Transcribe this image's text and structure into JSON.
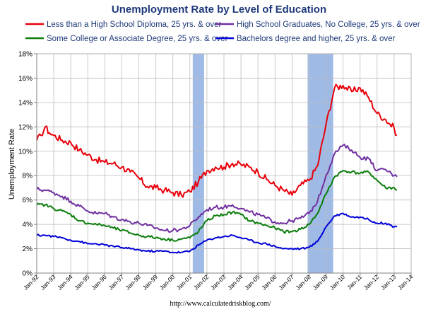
{
  "chart_data": {
    "type": "line",
    "title": "Unemployment Rate by Level of Education",
    "xlabel": "",
    "ylabel": "Unemployment Rate",
    "x_range": [
      "Jan-92",
      "Jan-14"
    ],
    "ylim": [
      0,
      18
    ],
    "y_ticks": [
      "0%",
      "2%",
      "4%",
      "6%",
      "8%",
      "10%",
      "12%",
      "14%",
      "16%",
      "18%"
    ],
    "x_ticks": [
      "Jan-92",
      "Jan-93",
      "Jan-94",
      "Jan-95",
      "Jan-96",
      "Jan-97",
      "Jan-98",
      "Jan-99",
      "Jan-00",
      "Jan-01",
      "Jan-02",
      "Jan-03",
      "Jan-04",
      "Jan-05",
      "Jan-06",
      "Jan-07",
      "Jan-08",
      "Jan-09",
      "Jan-10",
      "Jan-11",
      "Jan-12",
      "Jan-13",
      "Jan-14"
    ],
    "grid": true,
    "legend_position": "top",
    "source": "http://www.calculatedriskblog.com/",
    "recessions": [
      {
        "start": "Mar-01",
        "end": "Nov-01"
      },
      {
        "start": "Dec-07",
        "end": "Jun-09"
      }
    ],
    "series": [
      {
        "name": "Less than a High School Diploma, 25 yrs. & over",
        "color": "#e8000b",
        "points": [
          [
            "Jan-92",
            10.9
          ],
          [
            "Apr-92",
            11.3
          ],
          [
            "Jul-92",
            12.0
          ],
          [
            "Oct-92",
            11.5
          ],
          [
            "Jan-93",
            11.3
          ],
          [
            "Jul-93",
            10.9
          ],
          [
            "Jan-94",
            10.7
          ],
          [
            "Jul-94",
            10.1
          ],
          [
            "Jan-95",
            9.7
          ],
          [
            "Jul-95",
            9.3
          ],
          [
            "Jan-96",
            9.1
          ],
          [
            "Jul-96",
            9.0
          ],
          [
            "Jan-97",
            8.7
          ],
          [
            "Jul-97",
            8.3
          ],
          [
            "Jan-98",
            7.8
          ],
          [
            "Jul-98",
            7.1
          ],
          [
            "Jan-99",
            7.0
          ],
          [
            "Jul-99",
            6.8
          ],
          [
            "Jan-00",
            6.6
          ],
          [
            "Jul-00",
            6.4
          ],
          [
            "Jan-01",
            6.7
          ],
          [
            "Jul-01",
            7.5
          ],
          [
            "Jan-02",
            8.4
          ],
          [
            "Jul-02",
            8.7
          ],
          [
            "Jan-03",
            8.7
          ],
          [
            "Jul-03",
            9.0
          ],
          [
            "Jan-04",
            8.9
          ],
          [
            "Jul-04",
            8.7
          ],
          [
            "Jan-05",
            8.3
          ],
          [
            "Jul-05",
            7.7
          ],
          [
            "Jan-06",
            7.2
          ],
          [
            "Jul-06",
            6.8
          ],
          [
            "Jan-07",
            6.4
          ],
          [
            "Jul-07",
            7.2
          ],
          [
            "Jan-08",
            7.6
          ],
          [
            "Jul-08",
            8.8
          ],
          [
            "Jan-09",
            12.2
          ],
          [
            "Jul-09",
            15.2
          ],
          [
            "Jan-10",
            15.4
          ],
          [
            "Jul-10",
            14.9
          ],
          [
            "Jan-11",
            15.2
          ],
          [
            "Jul-11",
            14.4
          ],
          [
            "Jan-12",
            13.1
          ],
          [
            "Jul-12",
            12.6
          ],
          [
            "Jan-13",
            11.9
          ],
          [
            "Mar-13",
            11.3
          ]
        ]
      },
      {
        "name": "High School Graduates, No College, 25 yrs. & over",
        "color": "#7030a0",
        "points": [
          [
            "Jan-92",
            6.9
          ],
          [
            "Jul-92",
            6.8
          ],
          [
            "Jan-93",
            6.6
          ],
          [
            "Jul-93",
            6.3
          ],
          [
            "Jan-94",
            5.9
          ],
          [
            "Jul-94",
            5.5
          ],
          [
            "Jan-95",
            5.1
          ],
          [
            "Jul-95",
            4.9
          ],
          [
            "Jan-96",
            4.9
          ],
          [
            "Jul-96",
            4.6
          ],
          [
            "Jan-97",
            4.4
          ],
          [
            "Jul-97",
            4.2
          ],
          [
            "Jan-98",
            4.1
          ],
          [
            "Jul-98",
            3.9
          ],
          [
            "Jan-99",
            3.7
          ],
          [
            "Jul-99",
            3.5
          ],
          [
            "Jan-00",
            3.5
          ],
          [
            "Jul-00",
            3.6
          ],
          [
            "Jan-01",
            3.9
          ],
          [
            "Jul-01",
            4.6
          ],
          [
            "Jan-02",
            5.2
          ],
          [
            "Jul-02",
            5.4
          ],
          [
            "Jan-03",
            5.4
          ],
          [
            "Jul-03",
            5.6
          ],
          [
            "Jan-04",
            5.3
          ],
          [
            "Jul-04",
            5.0
          ],
          [
            "Jan-05",
            4.8
          ],
          [
            "Jul-05",
            4.5
          ],
          [
            "Jan-06",
            4.2
          ],
          [
            "Jul-06",
            4.1
          ],
          [
            "Jan-07",
            4.3
          ],
          [
            "Jul-07",
            4.5
          ],
          [
            "Jan-08",
            4.9
          ],
          [
            "Jul-08",
            5.9
          ],
          [
            "Jan-09",
            8.0
          ],
          [
            "Jul-09",
            9.8
          ],
          [
            "Jan-10",
            10.5
          ],
          [
            "Jul-10",
            10.1
          ],
          [
            "Jan-11",
            9.5
          ],
          [
            "Jul-11",
            9.4
          ],
          [
            "Jan-12",
            8.4
          ],
          [
            "Jul-12",
            8.5
          ],
          [
            "Jan-13",
            8.0
          ],
          [
            "Mar-13",
            7.9
          ]
        ]
      },
      {
        "name": "Some College or Associate Degree, 25 yrs. & over",
        "color": "#0a7d0a",
        "points": [
          [
            "Jan-92",
            5.6
          ],
          [
            "Jul-92",
            5.6
          ],
          [
            "Jan-93",
            5.3
          ],
          [
            "Jul-93",
            5.1
          ],
          [
            "Jan-94",
            4.8
          ],
          [
            "Jul-94",
            4.3
          ],
          [
            "Jan-95",
            4.1
          ],
          [
            "Jul-95",
            4.0
          ],
          [
            "Jan-96",
            3.9
          ],
          [
            "Jul-96",
            3.7
          ],
          [
            "Jan-97",
            3.5
          ],
          [
            "Jul-97",
            3.3
          ],
          [
            "Jan-98",
            3.1
          ],
          [
            "Jul-98",
            3.0
          ],
          [
            "Jan-99",
            2.9
          ],
          [
            "Jul-99",
            2.8
          ],
          [
            "Jan-00",
            2.7
          ],
          [
            "Jul-00",
            2.8
          ],
          [
            "Jan-01",
            2.9
          ],
          [
            "Jul-01",
            3.4
          ],
          [
            "Jan-02",
            4.3
          ],
          [
            "Jul-02",
            4.7
          ],
          [
            "Jan-03",
            4.8
          ],
          [
            "Jul-03",
            5.0
          ],
          [
            "Jan-04",
            4.8
          ],
          [
            "Jul-04",
            4.3
          ],
          [
            "Jan-05",
            4.1
          ],
          [
            "Jul-05",
            3.9
          ],
          [
            "Jan-06",
            3.7
          ],
          [
            "Jul-06",
            3.4
          ],
          [
            "Jan-07",
            3.4
          ],
          [
            "Jul-07",
            3.6
          ],
          [
            "Jan-08",
            4.0
          ],
          [
            "Jul-08",
            4.9
          ],
          [
            "Jan-09",
            6.5
          ],
          [
            "Jul-09",
            7.9
          ],
          [
            "Jan-10",
            8.4
          ],
          [
            "Jul-10",
            8.3
          ],
          [
            "Jan-11",
            8.2
          ],
          [
            "Jul-11",
            8.3
          ],
          [
            "Jan-12",
            7.6
          ],
          [
            "Jul-12",
            7.0
          ],
          [
            "Jan-13",
            7.0
          ],
          [
            "Mar-13",
            6.8
          ]
        ]
      },
      {
        "name": "Bachelors degree and higher, 25 yrs. & over",
        "color": "#0000d8",
        "points": [
          [
            "Jan-92",
            3.1
          ],
          [
            "Jul-92",
            3.1
          ],
          [
            "Jan-93",
            3.0
          ],
          [
            "Jul-93",
            2.9
          ],
          [
            "Jan-94",
            2.7
          ],
          [
            "Jul-94",
            2.6
          ],
          [
            "Jan-95",
            2.4
          ],
          [
            "Jul-95",
            2.4
          ],
          [
            "Jan-96",
            2.3
          ],
          [
            "Jul-96",
            2.2
          ],
          [
            "Jan-97",
            2.1
          ],
          [
            "Jul-97",
            2.0
          ],
          [
            "Jan-98",
            1.9
          ],
          [
            "Jul-98",
            1.8
          ],
          [
            "Jan-99",
            1.8
          ],
          [
            "Jul-99",
            1.8
          ],
          [
            "Jan-00",
            1.7
          ],
          [
            "Jul-00",
            1.7
          ],
          [
            "Jan-01",
            1.8
          ],
          [
            "Jul-01",
            2.3
          ],
          [
            "Jan-02",
            2.7
          ],
          [
            "Jul-02",
            2.9
          ],
          [
            "Jan-03",
            3.0
          ],
          [
            "Jul-03",
            3.1
          ],
          [
            "Jan-04",
            2.9
          ],
          [
            "Jul-04",
            2.7
          ],
          [
            "Jan-05",
            2.5
          ],
          [
            "Jul-05",
            2.4
          ],
          [
            "Jan-06",
            2.2
          ],
          [
            "Jul-06",
            2.0
          ],
          [
            "Jan-07",
            2.0
          ],
          [
            "Jul-07",
            2.0
          ],
          [
            "Jan-08",
            2.1
          ],
          [
            "Jul-08",
            2.6
          ],
          [
            "Jan-09",
            3.8
          ],
          [
            "Jul-09",
            4.7
          ],
          [
            "Jan-10",
            4.9
          ],
          [
            "Jul-10",
            4.6
          ],
          [
            "Jan-11",
            4.6
          ],
          [
            "Jul-11",
            4.4
          ],
          [
            "Jan-12",
            4.1
          ],
          [
            "Jul-12",
            4.1
          ],
          [
            "Jan-13",
            3.8
          ],
          [
            "Mar-13",
            3.8
          ]
        ]
      }
    ]
  }
}
